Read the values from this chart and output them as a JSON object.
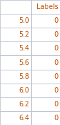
{
  "col_header": "Labels",
  "row_labels": [
    "5.0",
    "5.2",
    "5.4",
    "5.6",
    "5.8",
    "6.0",
    "6.2",
    "6.4"
  ],
  "values": [
    "0",
    "0",
    "0",
    "0",
    "0",
    "0",
    "0",
    "0"
  ],
  "header_text_color": "#c05000",
  "cell_text_color": "#c05000",
  "edge_color": "#b0b8c8",
  "bg_color": "#ffffff",
  "fig_bg_color": "#ffffff",
  "fig_width": 0.87,
  "fig_height": 1.81,
  "dpi": 100
}
